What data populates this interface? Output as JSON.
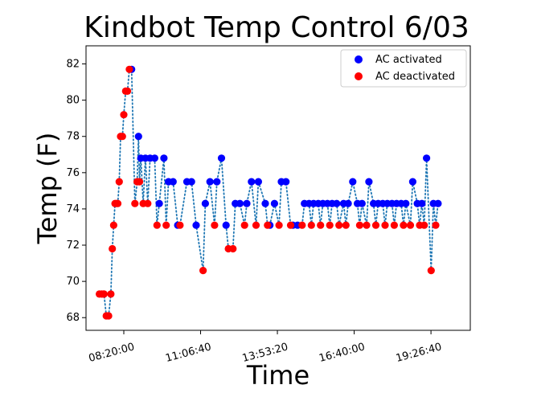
{
  "chart_data": {
    "type": "scatter",
    "title": "Kindbot Temp Control 6/03",
    "xlabel": "Time",
    "ylabel": "Temp (F)",
    "ylim": [
      67.3,
      83.0
    ],
    "yticks": [
      68,
      70,
      72,
      74,
      76,
      78,
      80,
      82
    ],
    "xticks": [
      "08:20:00",
      "11:06:40",
      "13:53:20",
      "16:40:00",
      "19:26:40"
    ],
    "xlim": [
      "06:58:00",
      "20:52:00"
    ],
    "grid": false,
    "legend_position": "top-right",
    "connector": {
      "style": "dotted",
      "color": "#1f77b4"
    },
    "series": [
      {
        "name": "AC activated",
        "color": "#0000ff",
        "points": [
          {
            "x": "08:37:00",
            "y": 81.7
          },
          {
            "x": "08:52:00",
            "y": 78.0
          },
          {
            "x": "08:57:00",
            "y": 76.8
          },
          {
            "x": "09:07:00",
            "y": 76.8
          },
          {
            "x": "09:17:00",
            "y": 76.8
          },
          {
            "x": "09:27:00",
            "y": 76.8
          },
          {
            "x": "09:37:00",
            "y": 74.3
          },
          {
            "x": "09:47:00",
            "y": 76.8
          },
          {
            "x": "09:57:00",
            "y": 75.5
          },
          {
            "x": "10:07:00",
            "y": 75.5
          },
          {
            "x": "10:17:00",
            "y": 73.1
          },
          {
            "x": "10:37:00",
            "y": 75.5
          },
          {
            "x": "10:47:00",
            "y": 75.5
          },
          {
            "x": "10:57:00",
            "y": 73.1
          },
          {
            "x": "11:17:00",
            "y": 74.3
          },
          {
            "x": "11:27:00",
            "y": 75.5
          },
          {
            "x": "11:42:00",
            "y": 75.5
          },
          {
            "x": "11:52:00",
            "y": 76.8
          },
          {
            "x": "12:02:00",
            "y": 73.1
          },
          {
            "x": "12:22:00",
            "y": 74.3
          },
          {
            "x": "12:32:00",
            "y": 74.3
          },
          {
            "x": "12:47:00",
            "y": 74.3
          },
          {
            "x": "12:57:00",
            "y": 75.5
          },
          {
            "x": "13:12:00",
            "y": 75.5
          },
          {
            "x": "13:27:00",
            "y": 74.3
          },
          {
            "x": "13:37:00",
            "y": 73.1
          },
          {
            "x": "13:47:00",
            "y": 74.3
          },
          {
            "x": "14:02:00",
            "y": 75.5
          },
          {
            "x": "14:12:00",
            "y": 75.5
          },
          {
            "x": "14:27:00",
            "y": 73.1
          },
          {
            "x": "14:37:00",
            "y": 73.1
          },
          {
            "x": "14:52:00",
            "y": 74.3
          },
          {
            "x": "15:02:00",
            "y": 74.3
          },
          {
            "x": "15:12:00",
            "y": 74.3
          },
          {
            "x": "15:22:00",
            "y": 74.3
          },
          {
            "x": "15:32:00",
            "y": 74.3
          },
          {
            "x": "15:42:00",
            "y": 74.3
          },
          {
            "x": "15:52:00",
            "y": 74.3
          },
          {
            "x": "16:02:00",
            "y": 74.3
          },
          {
            "x": "16:17:00",
            "y": 74.3
          },
          {
            "x": "16:27:00",
            "y": 74.3
          },
          {
            "x": "16:37:00",
            "y": 75.5
          },
          {
            "x": "16:47:00",
            "y": 74.3
          },
          {
            "x": "16:57:00",
            "y": 74.3
          },
          {
            "x": "17:12:00",
            "y": 75.5
          },
          {
            "x": "17:22:00",
            "y": 74.3
          },
          {
            "x": "17:32:00",
            "y": 74.3
          },
          {
            "x": "17:42:00",
            "y": 74.3
          },
          {
            "x": "17:52:00",
            "y": 74.3
          },
          {
            "x": "18:02:00",
            "y": 74.3
          },
          {
            "x": "18:12:00",
            "y": 74.3
          },
          {
            "x": "18:22:00",
            "y": 74.3
          },
          {
            "x": "18:32:00",
            "y": 74.3
          },
          {
            "x": "18:47:00",
            "y": 75.5
          },
          {
            "x": "18:57:00",
            "y": 74.3
          },
          {
            "x": "19:07:00",
            "y": 74.3
          },
          {
            "x": "19:17:00",
            "y": 76.8
          },
          {
            "x": "19:32:00",
            "y": 74.3
          },
          {
            "x": "19:42:00",
            "y": 74.3
          }
        ]
      },
      {
        "name": "AC deactivated",
        "color": "#ff0000",
        "points": [
          {
            "x": "07:27:00",
            "y": 69.3
          },
          {
            "x": "07:32:00",
            "y": 69.3
          },
          {
            "x": "07:37:00",
            "y": 69.3
          },
          {
            "x": "07:42:00",
            "y": 68.1
          },
          {
            "x": "07:47:00",
            "y": 68.1
          },
          {
            "x": "07:52:00",
            "y": 69.3
          },
          {
            "x": "07:55:00",
            "y": 71.8
          },
          {
            "x": "07:58:00",
            "y": 73.1
          },
          {
            "x": "08:01:00",
            "y": 74.3
          },
          {
            "x": "08:04:00",
            "y": 74.3
          },
          {
            "x": "08:07:00",
            "y": 74.3
          },
          {
            "x": "08:10:00",
            "y": 75.5
          },
          {
            "x": "08:13:00",
            "y": 78.0
          },
          {
            "x": "08:17:00",
            "y": 78.0
          },
          {
            "x": "08:20:00",
            "y": 79.2
          },
          {
            "x": "08:24:00",
            "y": 80.5
          },
          {
            "x": "08:28:00",
            "y": 80.5
          },
          {
            "x": "08:32:00",
            "y": 81.7
          },
          {
            "x": "08:44:00",
            "y": 74.3
          },
          {
            "x": "08:49:00",
            "y": 75.5
          },
          {
            "x": "08:54:00",
            "y": 75.5
          },
          {
            "x": "09:02:00",
            "y": 74.3
          },
          {
            "x": "09:12:00",
            "y": 74.3
          },
          {
            "x": "09:32:00",
            "y": 73.1
          },
          {
            "x": "09:52:00",
            "y": 73.1
          },
          {
            "x": "10:22:00",
            "y": 73.1
          },
          {
            "x": "11:12:00",
            "y": 70.6
          },
          {
            "x": "11:37:00",
            "y": 73.1
          },
          {
            "x": "12:07:00",
            "y": 71.8
          },
          {
            "x": "12:17:00",
            "y": 71.8
          },
          {
            "x": "12:42:00",
            "y": 73.1
          },
          {
            "x": "13:07:00",
            "y": 73.1
          },
          {
            "x": "13:32:00",
            "y": 73.1
          },
          {
            "x": "13:57:00",
            "y": 73.1
          },
          {
            "x": "14:22:00",
            "y": 73.1
          },
          {
            "x": "14:47:00",
            "y": 73.1
          },
          {
            "x": "15:07:00",
            "y": 73.1
          },
          {
            "x": "15:27:00",
            "y": 73.1
          },
          {
            "x": "15:47:00",
            "y": 73.1
          },
          {
            "x": "16:07:00",
            "y": 73.1
          },
          {
            "x": "16:22:00",
            "y": 73.1
          },
          {
            "x": "16:52:00",
            "y": 73.1
          },
          {
            "x": "17:07:00",
            "y": 73.1
          },
          {
            "x": "17:27:00",
            "y": 73.1
          },
          {
            "x": "17:47:00",
            "y": 73.1
          },
          {
            "x": "18:07:00",
            "y": 73.1
          },
          {
            "x": "18:27:00",
            "y": 73.1
          },
          {
            "x": "18:42:00",
            "y": 73.1
          },
          {
            "x": "19:02:00",
            "y": 73.1
          },
          {
            "x": "19:12:00",
            "y": 73.1
          },
          {
            "x": "19:27:00",
            "y": 70.6
          },
          {
            "x": "19:37:00",
            "y": 73.1
          }
        ]
      }
    ]
  }
}
